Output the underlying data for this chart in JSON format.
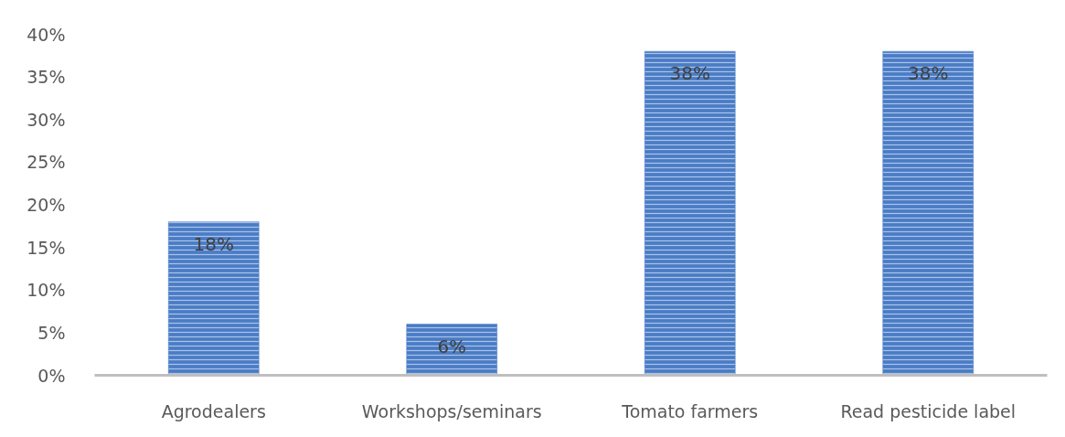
{
  "chart_data": {
    "type": "bar",
    "categories": [
      "Agrodealers",
      "Workshops/seminars",
      "Tomato farmers",
      "Read pesticide label"
    ],
    "values": [
      18,
      6,
      38,
      38
    ],
    "color": "#4a7cc6",
    "value_labels": [
      "18%",
      "6%",
      "38%",
      "38%"
    ],
    "ylim": [
      0,
      40
    ],
    "yticks": [
      {
        "value": 0,
        "label": "0%"
      },
      {
        "value": 5,
        "label": "5%"
      },
      {
        "value": 10,
        "label": "10%"
      },
      {
        "value": 15,
        "label": "15%"
      },
      {
        "value": 20,
        "label": "20%"
      },
      {
        "value": 25,
        "label": "25%"
      },
      {
        "value": 30,
        "label": "30%"
      },
      {
        "value": 35,
        "label": "35%"
      },
      {
        "value": 40,
        "label": "40%"
      }
    ],
    "grid": false
  }
}
